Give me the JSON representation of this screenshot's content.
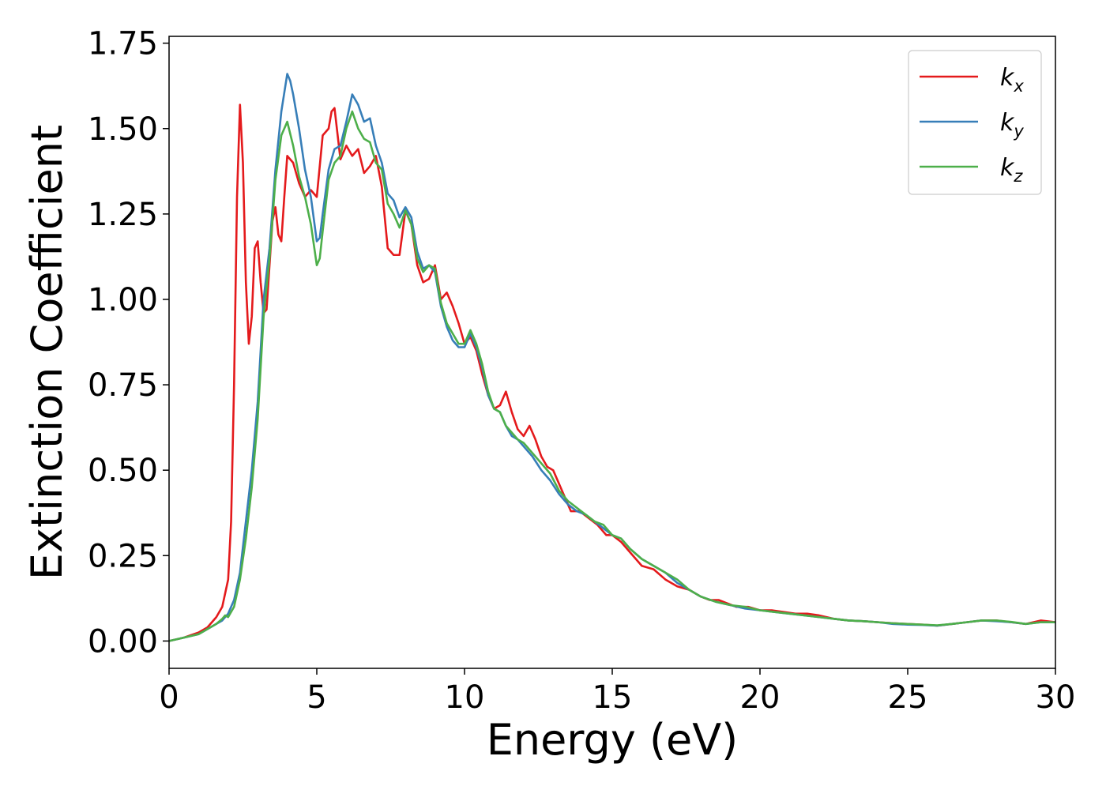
{
  "chart_data": {
    "type": "line",
    "title": "",
    "xlabel": "Energy (eV)",
    "ylabel": "Extinction Coefficient",
    "xlim": [
      0,
      30
    ],
    "ylim": [
      -0.08,
      1.77
    ],
    "xticks": [
      0,
      5,
      10,
      15,
      20,
      25,
      30
    ],
    "xtick_labels": [
      "0",
      "5",
      "10",
      "15",
      "20",
      "25",
      "30"
    ],
    "yticks": [
      0,
      0.25,
      0.5,
      0.75,
      1.0,
      1.25,
      1.5,
      1.75
    ],
    "ytick_labels": [
      "0.00",
      "0.25",
      "0.50",
      "0.75",
      "1.00",
      "1.25",
      "1.50",
      "1.75"
    ],
    "grid": false,
    "legend_position": "top-right",
    "series": [
      {
        "name": "k_x",
        "label_base": "k",
        "label_sub": "x",
        "color": "#e41a1c",
        "x": [
          0,
          0.5,
          1.0,
          1.3,
          1.6,
          1.8,
          2.0,
          2.1,
          2.2,
          2.3,
          2.4,
          2.5,
          2.6,
          2.7,
          2.8,
          2.9,
          3.0,
          3.1,
          3.2,
          3.3,
          3.4,
          3.5,
          3.6,
          3.7,
          3.8,
          3.9,
          4.0,
          4.2,
          4.4,
          4.6,
          4.8,
          5.0,
          5.2,
          5.4,
          5.5,
          5.6,
          5.8,
          6.0,
          6.2,
          6.4,
          6.6,
          6.8,
          7.0,
          7.2,
          7.4,
          7.6,
          7.8,
          8.0,
          8.2,
          8.4,
          8.6,
          8.8,
          9.0,
          9.2,
          9.4,
          9.6,
          9.8,
          10.0,
          10.2,
          10.4,
          10.6,
          10.8,
          11.0,
          11.2,
          11.4,
          11.6,
          11.8,
          12.0,
          12.2,
          12.4,
          12.6,
          12.8,
          13.0,
          13.3,
          13.6,
          13.9,
          14.2,
          14.5,
          14.8,
          15.0,
          15.3,
          15.6,
          16.0,
          16.4,
          16.8,
          17.2,
          17.6,
          18.0,
          18.3,
          18.6,
          18.9,
          19.2,
          19.6,
          20.0,
          20.4,
          20.8,
          21.2,
          21.6,
          22.0,
          22.5,
          23.0,
          23.5,
          24.0,
          24.5,
          25.0,
          25.5,
          26.0,
          26.5,
          27.0,
          27.5,
          28.0,
          28.5,
          29.0,
          29.5,
          30.0
        ],
        "y": [
          0.0,
          0.01,
          0.025,
          0.04,
          0.07,
          0.1,
          0.18,
          0.35,
          0.75,
          1.3,
          1.57,
          1.4,
          1.05,
          0.87,
          0.95,
          1.15,
          1.17,
          1.05,
          0.96,
          0.97,
          1.1,
          1.23,
          1.27,
          1.19,
          1.17,
          1.3,
          1.42,
          1.4,
          1.34,
          1.3,
          1.32,
          1.3,
          1.48,
          1.5,
          1.55,
          1.56,
          1.41,
          1.45,
          1.42,
          1.44,
          1.37,
          1.39,
          1.42,
          1.33,
          1.15,
          1.13,
          1.13,
          1.26,
          1.22,
          1.1,
          1.05,
          1.06,
          1.1,
          1.0,
          1.02,
          0.98,
          0.93,
          0.87,
          0.89,
          0.85,
          0.78,
          0.72,
          0.68,
          0.69,
          0.73,
          0.67,
          0.62,
          0.6,
          0.63,
          0.59,
          0.54,
          0.51,
          0.5,
          0.44,
          0.38,
          0.38,
          0.36,
          0.34,
          0.31,
          0.31,
          0.29,
          0.26,
          0.22,
          0.21,
          0.18,
          0.16,
          0.15,
          0.13,
          0.12,
          0.12,
          0.11,
          0.1,
          0.1,
          0.09,
          0.09,
          0.085,
          0.08,
          0.08,
          0.075,
          0.065,
          0.06,
          0.058,
          0.055,
          0.052,
          0.05,
          0.048,
          0.045,
          0.05,
          0.055,
          0.06,
          0.06,
          0.055,
          0.05,
          0.06,
          0.055
        ]
      },
      {
        "name": "k_y",
        "label_base": "k",
        "label_sub": "y",
        "color": "#377eb8",
        "x": [
          0,
          0.5,
          1.0,
          1.3,
          1.6,
          1.8,
          2.0,
          2.2,
          2.4,
          2.6,
          2.8,
          3.0,
          3.2,
          3.4,
          3.6,
          3.8,
          4.0,
          4.1,
          4.2,
          4.4,
          4.6,
          4.8,
          5.0,
          5.1,
          5.2,
          5.4,
          5.6,
          5.8,
          6.0,
          6.2,
          6.4,
          6.6,
          6.8,
          7.0,
          7.2,
          7.4,
          7.6,
          7.8,
          8.0,
          8.2,
          8.4,
          8.6,
          8.8,
          9.0,
          9.2,
          9.4,
          9.6,
          9.8,
          10.0,
          10.2,
          10.4,
          10.6,
          10.8,
          11.0,
          11.2,
          11.4,
          11.6,
          11.8,
          12.0,
          12.3,
          12.6,
          12.9,
          13.2,
          13.5,
          13.8,
          14.1,
          14.4,
          14.7,
          15.0,
          15.3,
          15.6,
          16.0,
          16.4,
          16.8,
          17.2,
          17.6,
          18.0,
          18.5,
          19.0,
          19.5,
          20.0,
          20.5,
          21.0,
          21.5,
          22.0,
          22.5,
          23.0,
          23.5,
          24.0,
          24.5,
          25.0,
          25.5,
          26.0,
          26.5,
          27.0,
          27.5,
          28.0,
          28.5,
          29.0,
          29.5,
          30.0
        ],
        "y": [
          0.0,
          0.01,
          0.02,
          0.035,
          0.05,
          0.06,
          0.08,
          0.12,
          0.2,
          0.35,
          0.5,
          0.7,
          1.0,
          1.15,
          1.38,
          1.55,
          1.66,
          1.64,
          1.6,
          1.5,
          1.38,
          1.3,
          1.17,
          1.18,
          1.25,
          1.38,
          1.44,
          1.45,
          1.52,
          1.6,
          1.57,
          1.52,
          1.53,
          1.45,
          1.4,
          1.31,
          1.29,
          1.24,
          1.27,
          1.24,
          1.14,
          1.09,
          1.1,
          1.08,
          0.98,
          0.92,
          0.88,
          0.86,
          0.86,
          0.9,
          0.86,
          0.8,
          0.72,
          0.68,
          0.67,
          0.63,
          0.6,
          0.59,
          0.57,
          0.54,
          0.5,
          0.47,
          0.43,
          0.4,
          0.38,
          0.37,
          0.35,
          0.33,
          0.31,
          0.3,
          0.27,
          0.24,
          0.22,
          0.2,
          0.17,
          0.15,
          0.13,
          0.115,
          0.105,
          0.095,
          0.09,
          0.085,
          0.08,
          0.075,
          0.07,
          0.065,
          0.06,
          0.058,
          0.055,
          0.05,
          0.048,
          0.047,
          0.045,
          0.05,
          0.055,
          0.06,
          0.058,
          0.055,
          0.05,
          0.055,
          0.055
        ]
      },
      {
        "name": "k_z",
        "label_base": "k",
        "label_sub": "z",
        "color": "#4daf4a",
        "x": [
          0,
          0.5,
          1.0,
          1.3,
          1.6,
          1.8,
          1.9,
          2.0,
          2.2,
          2.4,
          2.6,
          2.8,
          3.0,
          3.2,
          3.4,
          3.6,
          3.8,
          4.0,
          4.2,
          4.4,
          4.6,
          4.8,
          5.0,
          5.1,
          5.2,
          5.4,
          5.6,
          5.8,
          6.0,
          6.2,
          6.4,
          6.6,
          6.8,
          7.0,
          7.2,
          7.4,
          7.6,
          7.8,
          8.0,
          8.2,
          8.4,
          8.6,
          8.8,
          9.0,
          9.2,
          9.4,
          9.6,
          9.8,
          10.0,
          10.2,
          10.4,
          10.6,
          10.8,
          11.0,
          11.2,
          11.4,
          11.6,
          11.8,
          12.0,
          12.3,
          12.6,
          12.9,
          13.2,
          13.5,
          13.8,
          14.1,
          14.4,
          14.7,
          15.0,
          15.3,
          15.6,
          16.0,
          16.4,
          16.8,
          17.2,
          17.6,
          18.0,
          18.5,
          19.0,
          19.5,
          20.0,
          20.5,
          21.0,
          21.5,
          22.0,
          22.5,
          23.0,
          23.5,
          24.0,
          24.5,
          25.0,
          25.5,
          26.0,
          26.5,
          27.0,
          27.5,
          28.0,
          28.5,
          29.0,
          29.5,
          30.0
        ],
        "y": [
          0.0,
          0.01,
          0.02,
          0.035,
          0.05,
          0.065,
          0.075,
          0.07,
          0.1,
          0.18,
          0.3,
          0.45,
          0.65,
          0.95,
          1.12,
          1.35,
          1.48,
          1.52,
          1.45,
          1.36,
          1.3,
          1.22,
          1.1,
          1.12,
          1.2,
          1.35,
          1.4,
          1.42,
          1.5,
          1.55,
          1.5,
          1.47,
          1.46,
          1.4,
          1.38,
          1.28,
          1.25,
          1.21,
          1.26,
          1.22,
          1.12,
          1.08,
          1.1,
          1.09,
          0.99,
          0.93,
          0.9,
          0.87,
          0.87,
          0.91,
          0.87,
          0.81,
          0.73,
          0.68,
          0.67,
          0.63,
          0.61,
          0.59,
          0.58,
          0.55,
          0.52,
          0.49,
          0.44,
          0.41,
          0.39,
          0.37,
          0.35,
          0.34,
          0.31,
          0.3,
          0.27,
          0.24,
          0.22,
          0.2,
          0.18,
          0.15,
          0.13,
          0.115,
          0.105,
          0.1,
          0.09,
          0.085,
          0.08,
          0.075,
          0.07,
          0.065,
          0.06,
          0.058,
          0.055,
          0.052,
          0.05,
          0.048,
          0.046,
          0.05,
          0.055,
          0.06,
          0.06,
          0.056,
          0.05,
          0.055,
          0.055
        ]
      }
    ]
  }
}
